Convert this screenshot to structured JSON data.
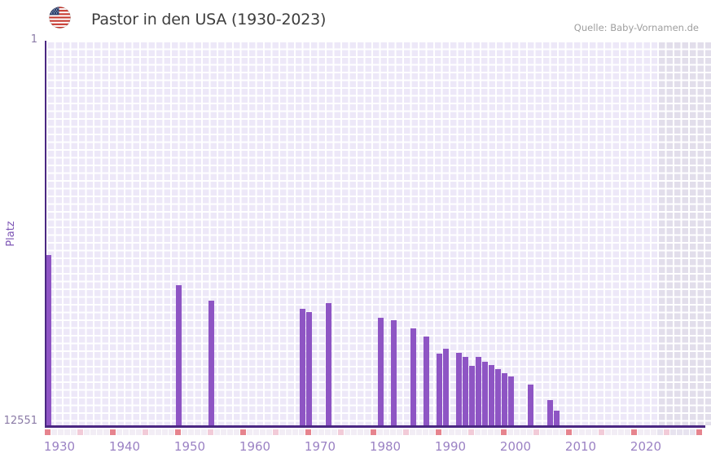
{
  "header": {
    "title": "Pastor in den USA (1930-2023)",
    "flag_icon": "us-flag-icon"
  },
  "source": {
    "label": "Quelle: Baby-Vornamen.de"
  },
  "y_axis": {
    "title": "Platz",
    "top_tick": "1",
    "bottom_tick": "12551"
  },
  "x_axis": {
    "labels": [
      "1930",
      "1940",
      "1950",
      "1960",
      "1970",
      "1980",
      "1990",
      "2000",
      "2010",
      "2020"
    ]
  },
  "chart_data": {
    "type": "bar",
    "title": "Pastor in den USA (1930-2023)",
    "xlabel": "",
    "ylabel": "Platz",
    "y_axis_inverted": true,
    "ylim": [
      1,
      12551
    ],
    "x_start_year": 1930,
    "x_end_year": 2031,
    "data_end_year": 2023,
    "tick_strip_last_year": 2030,
    "grid": true,
    "legend": "none",
    "points": [
      {
        "year": 1930,
        "rank": 6990
      },
      {
        "year": 1950,
        "rank": 7980
      },
      {
        "year": 1955,
        "rank": 8480
      },
      {
        "year": 1969,
        "rank": 8760
      },
      {
        "year": 1970,
        "rank": 8860
      },
      {
        "year": 1973,
        "rank": 8550
      },
      {
        "year": 1981,
        "rank": 9040
      },
      {
        "year": 1983,
        "rank": 9110
      },
      {
        "year": 1986,
        "rank": 9400
      },
      {
        "year": 1988,
        "rank": 9640
      },
      {
        "year": 1990,
        "rank": 10220
      },
      {
        "year": 1991,
        "rank": 10060
      },
      {
        "year": 1993,
        "rank": 10190
      },
      {
        "year": 1994,
        "rank": 10310
      },
      {
        "year": 1995,
        "rank": 10620
      },
      {
        "year": 1996,
        "rank": 10330
      },
      {
        "year": 1997,
        "rank": 10490
      },
      {
        "year": 1998,
        "rank": 10580
      },
      {
        "year": 1999,
        "rank": 10720
      },
      {
        "year": 2000,
        "rank": 10840
      },
      {
        "year": 2001,
        "rank": 10950
      },
      {
        "year": 2004,
        "rank": 11230
      },
      {
        "year": 2007,
        "rank": 11730
      },
      {
        "year": 2008,
        "rank": 12080
      }
    ],
    "colors": {
      "bar": "#8E55C4",
      "axis": "#4B2882",
      "grid_cell": "#EDE8F8",
      "future_cell": "#E2DEEB",
      "tick_default": "#F2EDF5",
      "tick_future_default": "#E7E3EF",
      "tick_half_decade": "#F2CBD8",
      "tick_decade": "#E6848E",
      "x_label": "#9B82C4",
      "y_tick_label": "#8A7AA6",
      "y_axis_label": "#7D55B5",
      "title": "#3E3E3E",
      "source": "#9E9E9E"
    }
  }
}
